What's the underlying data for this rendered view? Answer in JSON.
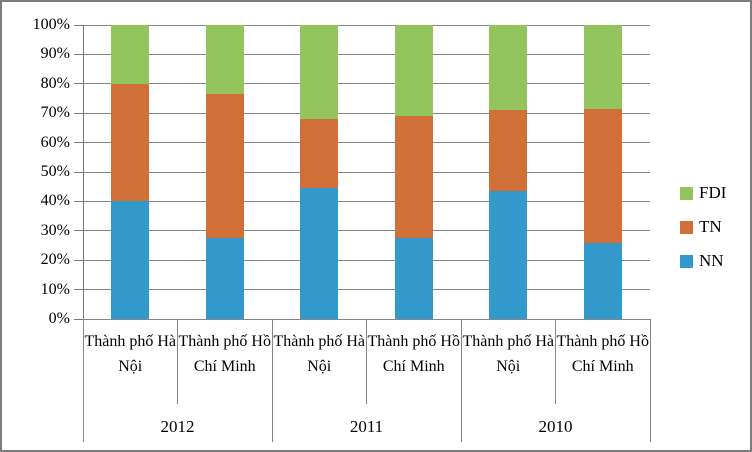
{
  "chart_data": {
    "type": "bar",
    "variant": "stacked-100-percent-column",
    "title": "",
    "xlabel": "",
    "ylabel": "",
    "ylim": [
      0,
      100
    ],
    "grid": true,
    "legend_position": "right",
    "y_ticks": [
      "0%",
      "10%",
      "20%",
      "30%",
      "40%",
      "50%",
      "60%",
      "70%",
      "80%",
      "90%",
      "100%"
    ],
    "group_labels": [
      "2012",
      "2011",
      "2010"
    ],
    "categories": [
      "Thành phố Hà Nội",
      "Thành phố Hồ Chí Minh",
      "Thành phố Hà Nội",
      "Thành phố Hồ Chí Minh",
      "Thành phố Hà Nội",
      "Thành phố Hồ Chí Minh"
    ],
    "series": [
      {
        "name": "NN",
        "color": "#3398CA",
        "values": [
          40,
          27.5,
          44.5,
          27.5,
          43.5,
          26
        ]
      },
      {
        "name": "TN",
        "color": "#D06F37",
        "values": [
          40,
          49,
          23.5,
          41.5,
          27.5,
          45.5
        ]
      },
      {
        "name": "FDI",
        "color": "#94C45E",
        "values": [
          20,
          23.5,
          32,
          31,
          29,
          28.5
        ]
      }
    ],
    "legend": [
      "FDI",
      "TN",
      "NN"
    ]
  },
  "colors": {
    "gridline": "#868686",
    "axis": "#757575",
    "text": "#000000",
    "background": "#ffffff",
    "frame_border": "#7d7d7d"
  }
}
